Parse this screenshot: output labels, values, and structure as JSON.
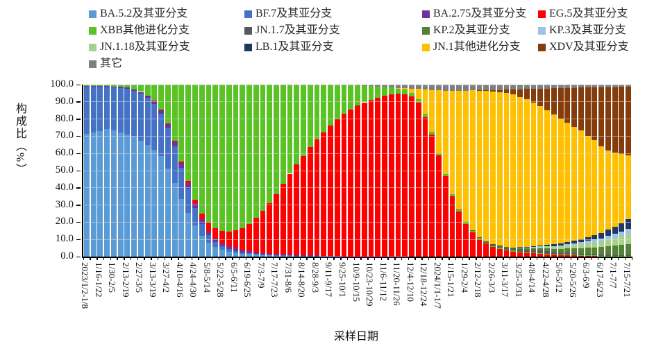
{
  "accent_colors": {
    "axis": "#000000",
    "gridline": "#D9D9D9",
    "background": "#FFFFFF"
  },
  "legend": {
    "items": [
      {
        "label": "BA.5.2及其亚分支",
        "color": "#5B9BD5"
      },
      {
        "label": "BF.7及其亚分支",
        "color": "#4472C4"
      },
      {
        "label": "BA.2.75及其亚分支",
        "color": "#7030A0"
      },
      {
        "label": "EG.5及其亚分支",
        "color": "#FF0000"
      },
      {
        "label": "XBB其他进化分支",
        "color": "#58C322"
      },
      {
        "label": "JN.1.7及其亚分支",
        "color": "#595959"
      },
      {
        "label": "KP.2及其亚分支",
        "color": "#538135"
      },
      {
        "label": "KP.3及其亚分支",
        "color": "#9DC3E6"
      },
      {
        "label": "JN.1.18及其亚分支",
        "color": "#A9D18E"
      },
      {
        "label": "LB.1及其亚分支",
        "color": "#1F3864"
      },
      {
        "label": "JN.1其他进化分支",
        "color": "#FFC000"
      },
      {
        "label": "XDV及其亚分支",
        "color": "#843C0C"
      },
      {
        "label": "其它",
        "color": "#7F7F7F"
      }
    ]
  },
  "chart_data": {
    "type": "bar",
    "stacked": true,
    "normalized_percent": true,
    "bar_count": 81,
    "bars_per_label": 2,
    "title": "",
    "xlabel": "采样日期",
    "ylabel": "构成比（%）",
    "ylim": [
      0,
      100
    ],
    "y_tick_labels": [
      "100.0",
      "90.0",
      "80.0",
      "70.0",
      "60.0",
      "50.0",
      "40.0",
      "30.0",
      "20.0",
      "10.0",
      "0.0"
    ],
    "x_labels": [
      "2023/1/2-1/8",
      "1/16-1/22",
      "1/30-2/5",
      "2/13-2/19",
      "2/27-3/5",
      "3/13-3/19",
      "3/27-4/2",
      "4/10-4/16",
      "4/24-4/30",
      "5/8-5/14",
      "5/22-5/28",
      "6/5-6/11",
      "6/19-6/25",
      "7/3-7/9",
      "7/17-7/23",
      "7/31-8/6",
      "8/14-8/20",
      "8/28-9/3",
      "9/11-9/17",
      "9/25-10/1",
      "10/9-10/15",
      "10/23-10/29",
      "11/6-11/12",
      "11/20-11/26",
      "12/4-12/10",
      "12/18-12/24",
      "2024/1/1-1/7",
      "1/15-1/21",
      "1/29-2/4",
      "2/12-2/18",
      "2/26-3/3",
      "3/11-3/17",
      "3/25-3/31",
      "4/8-4/14",
      "4/22-4/28",
      "5/6-5/12",
      "5/20-5/26",
      "6/3-6/9",
      "6/17-6/23",
      "7/1-7/7",
      "7/15-7/21"
    ],
    "series": [
      {
        "name": "BA.5.2及其亚分支",
        "color": "#5B9BD5",
        "values": [
          71,
          72,
          73,
          74,
          73,
          72,
          71,
          70,
          67,
          64,
          61,
          57,
          50,
          42,
          33,
          25,
          18,
          12,
          8,
          5.5,
          4,
          3,
          2.2,
          1.8,
          1.5,
          1.2,
          1,
          0.8,
          0.7,
          0.6,
          0.5,
          0.4,
          0.4,
          0.3,
          0.3,
          0.2,
          0.2,
          0.2,
          0.1,
          0.1,
          0.1,
          0.1,
          0.1,
          0.1,
          0.1,
          0.1,
          0.1,
          0.1,
          0,
          0,
          0,
          0,
          0,
          0,
          0,
          0,
          0,
          0,
          0,
          0,
          0,
          0,
          0,
          0,
          0,
          0,
          0,
          0,
          0,
          0,
          0,
          0,
          0,
          0,
          0,
          0,
          0,
          0,
          0,
          0,
          0
        ]
      },
      {
        "name": "BF.7及其亚分支",
        "color": "#4472C4",
        "values": [
          27.5,
          26.5,
          25.5,
          24.5,
          25,
          26,
          26.5,
          26,
          27,
          27,
          26,
          24,
          23,
          21,
          18,
          14,
          10,
          7,
          4.5,
          3,
          2,
          1.5,
          1.1,
          0.8,
          0.6,
          0.5,
          0.4,
          0.3,
          0.25,
          0.2,
          0.15,
          0.1,
          0.1,
          0.1,
          0.1,
          0.1,
          0.05,
          0.05,
          0,
          0,
          0,
          0,
          0,
          0,
          0,
          0,
          0,
          0,
          0,
          0,
          0,
          0,
          0,
          0,
          0,
          0,
          0,
          0,
          0,
          0,
          0,
          0,
          0,
          0,
          0,
          0,
          0,
          0,
          0,
          0,
          0,
          0,
          0,
          0,
          0,
          0,
          0,
          0,
          0,
          0,
          0
        ]
      },
      {
        "name": "BA.2.75及其亚分支",
        "color": "#7030A0",
        "values": [
          0.6,
          0.6,
          0.6,
          0.6,
          0.7,
          0.8,
          0.9,
          1,
          1.2,
          1.5,
          1.8,
          2.2,
          2.5,
          2.8,
          3,
          3,
          2.8,
          2.5,
          2.2,
          2,
          1.8,
          1.6,
          1.4,
          1.2,
          1,
          0.9,
          0.8,
          0.7,
          0.6,
          0.5,
          0.45,
          0.4,
          0.35,
          0.3,
          0.25,
          0.2,
          0.2,
          0.15,
          0.1,
          0.1,
          0.1,
          0.1,
          0.05,
          0.05,
          0.05,
          0,
          0,
          0,
          0,
          0,
          0,
          0,
          0,
          0,
          0,
          0,
          0,
          0,
          0,
          0,
          0,
          0,
          0,
          0,
          0,
          0,
          0,
          0,
          0,
          0,
          0,
          0,
          0,
          0,
          0,
          0,
          0,
          0,
          0,
          0,
          0
        ]
      },
      {
        "name": "EG.5及其亚分支",
        "color": "#FF0000",
        "values": [
          0,
          0,
          0,
          0,
          0,
          0,
          0,
          0,
          0,
          0,
          0.1,
          0.2,
          0.3,
          0.5,
          0.8,
          1.2,
          2,
          3.5,
          5,
          6,
          7,
          8.5,
          10.5,
          13,
          16,
          20,
          24.5,
          29.5,
          35,
          41,
          47,
          52.5,
          57.5,
          62,
          66.5,
          70.5,
          74.5,
          78,
          81,
          83.5,
          86,
          88,
          89.5,
          91,
          92.5,
          93.5,
          94.5,
          94.5,
          93,
          88,
          80,
          70,
          58,
          46,
          35,
          26,
          19,
          14,
          10,
          7.5,
          5.5,
          4.5,
          3.5,
          3,
          2.5,
          2.2,
          2,
          1.8,
          1.5,
          1.2,
          1,
          0.9,
          0.8,
          0.7,
          0.6,
          0.5,
          0.45,
          0.4,
          0.35,
          0.3,
          0.25
        ]
      },
      {
        "name": "XBB其他进化分支",
        "color": "#58C322",
        "values": [
          0.3,
          0.4,
          0.5,
          0.6,
          0.8,
          1,
          1.5,
          2.5,
          4,
          6,
          9,
          14,
          22,
          32,
          44,
          55,
          66,
          74,
          80,
          83,
          85,
          85.5,
          85,
          84,
          81.5,
          77.5,
          73.5,
          69,
          63.5,
          57.5,
          51.5,
          46,
          41,
          35.5,
          31,
          27,
          23,
          19.5,
          16.5,
          14,
          11.5,
          9.5,
          8,
          6.5,
          5,
          4,
          3,
          2.5,
          2.2,
          2,
          1.8,
          1.6,
          1.4,
          1.2,
          1.1,
          1,
          0.9,
          0.8,
          0.7,
          0.65,
          0.6,
          0.55,
          0.5,
          0.5,
          0.45,
          0.4,
          0.4,
          0.35,
          0.3,
          0.3,
          0.3,
          0.25,
          0.25,
          0.2,
          0.2,
          0.2,
          0.15,
          0.15,
          0.1,
          0.1,
          0.1
        ]
      },
      {
        "name": "JN.1.7及其亚分支",
        "color": "#595959",
        "values": [
          0,
          0,
          0,
          0,
          0,
          0,
          0,
          0,
          0,
          0,
          0,
          0,
          0,
          0,
          0,
          0,
          0,
          0,
          0,
          0,
          0,
          0,
          0,
          0,
          0,
          0,
          0,
          0,
          0,
          0,
          0,
          0,
          0,
          0,
          0,
          0,
          0,
          0,
          0,
          0,
          0,
          0,
          0,
          0,
          0,
          0,
          0,
          0,
          0,
          0,
          0,
          0,
          0,
          0,
          0,
          0.2,
          0.3,
          0.4,
          0.6,
          0.8,
          1,
          1.2,
          1.4,
          1.5,
          1.6,
          1.6,
          1.5,
          1.5,
          1.4,
          1.3,
          1.2,
          1.1,
          1,
          0.9,
          0.8,
          0.7,
          0.6,
          0.5,
          0.45,
          0.4,
          0.35
        ]
      },
      {
        "name": "KP.2及其亚分支",
        "color": "#538135",
        "values": [
          0,
          0,
          0,
          0,
          0,
          0,
          0,
          0,
          0,
          0,
          0,
          0,
          0,
          0,
          0,
          0,
          0,
          0,
          0,
          0,
          0,
          0,
          0,
          0,
          0,
          0,
          0,
          0,
          0,
          0,
          0,
          0,
          0,
          0,
          0,
          0,
          0,
          0,
          0,
          0,
          0,
          0,
          0,
          0,
          0,
          0,
          0,
          0,
          0,
          0,
          0,
          0,
          0,
          0,
          0,
          0,
          0,
          0,
          0,
          0,
          0,
          0,
          0.2,
          0.3,
          0.5,
          0.7,
          0.9,
          1.1,
          1.4,
          1.7,
          2,
          2.4,
          2.8,
          3.1,
          3.4,
          3.8,
          4.2,
          4.7,
          5.2,
          5.8,
          6.5
        ]
      },
      {
        "name": "JN.1.18及其亚分支",
        "color": "#A9D18E",
        "values": [
          0,
          0,
          0,
          0,
          0,
          0,
          0,
          0,
          0,
          0,
          0,
          0,
          0,
          0,
          0,
          0,
          0,
          0,
          0,
          0,
          0,
          0,
          0,
          0,
          0,
          0,
          0,
          0,
          0,
          0,
          0,
          0,
          0,
          0,
          0,
          0,
          0,
          0,
          0,
          0,
          0,
          0,
          0,
          0,
          0,
          0,
          0,
          0,
          0,
          0,
          0,
          0,
          0,
          0,
          0,
          0,
          0,
          0,
          0,
          0,
          0,
          0,
          0,
          0,
          0.3,
          0.4,
          0.6,
          0.8,
          1,
          1.2,
          1.5,
          1.8,
          2.1,
          2.4,
          2.7,
          3.1,
          3.5,
          4,
          4.5,
          5.2,
          6
        ]
      },
      {
        "name": "KP.3及其亚分支",
        "color": "#9DC3E6",
        "values": [
          0,
          0,
          0,
          0,
          0,
          0,
          0,
          0,
          0,
          0,
          0,
          0,
          0,
          0,
          0,
          0,
          0,
          0,
          0,
          0,
          0,
          0,
          0,
          0,
          0,
          0,
          0,
          0,
          0,
          0,
          0,
          0,
          0,
          0,
          0,
          0,
          0,
          0,
          0,
          0,
          0,
          0,
          0,
          0,
          0,
          0,
          0,
          0,
          0,
          0,
          0,
          0,
          0,
          0,
          0,
          0,
          0,
          0,
          0,
          0,
          0,
          0,
          0,
          0,
          0,
          0,
          0.2,
          0.3,
          0.4,
          0.5,
          0.6,
          0.7,
          0.9,
          1,
          1.2,
          1.4,
          1.6,
          1.9,
          2.2,
          2.6,
          3
        ]
      },
      {
        "name": "LB.1及其亚分支",
        "color": "#1F3864",
        "values": [
          0,
          0,
          0,
          0,
          0,
          0,
          0,
          0,
          0,
          0,
          0,
          0,
          0,
          0,
          0,
          0,
          0,
          0,
          0,
          0,
          0,
          0,
          0,
          0,
          0,
          0,
          0,
          0,
          0,
          0,
          0,
          0,
          0,
          0,
          0,
          0,
          0,
          0,
          0,
          0,
          0,
          0,
          0,
          0,
          0,
          0,
          0,
          0,
          0,
          0,
          0,
          0,
          0,
          0,
          0,
          0,
          0,
          0,
          0,
          0,
          0,
          0,
          0,
          0,
          0.2,
          0.3,
          0.4,
          0.5,
          0.7,
          0.9,
          1.1,
          1.3,
          1.6,
          1.9,
          2.2,
          2.6,
          3,
          3.5,
          4,
          4.8,
          5.8
        ]
      },
      {
        "name": "JN.1其他进化分支",
        "color": "#FFC000",
        "values": [
          0,
          0,
          0,
          0,
          0,
          0,
          0,
          0,
          0,
          0,
          0,
          0,
          0,
          0,
          0,
          0,
          0,
          0,
          0,
          0,
          0,
          0,
          0,
          0,
          0,
          0,
          0,
          0,
          0,
          0,
          0,
          0,
          0,
          0,
          0,
          0,
          0,
          0,
          0,
          0,
          0,
          0,
          0,
          0,
          0,
          0,
          0.3,
          0.8,
          2.5,
          6,
          14,
          24,
          36,
          48,
          60,
          69,
          76,
          81,
          84.5,
          86.5,
          88,
          88,
          88,
          88.5,
          87,
          86,
          83.5,
          81,
          77.5,
          75.5,
          72.5,
          69.5,
          66,
          63,
          57,
          54,
          50,
          44,
          42,
          39.5,
          37
        ]
      },
      {
        "name": "XDV及其亚分支",
        "color": "#843C0C",
        "values": [
          0,
          0,
          0,
          0,
          0,
          0,
          0,
          0,
          0,
          0,
          0,
          0,
          0,
          0,
          0,
          0,
          0,
          0,
          0,
          0,
          0,
          0,
          0,
          0,
          0,
          0,
          0,
          0,
          0,
          0,
          0,
          0,
          0,
          0,
          0,
          0,
          0,
          0,
          0,
          0,
          0,
          0,
          0,
          0,
          0,
          0,
          0,
          0,
          0,
          0,
          0,
          0,
          0,
          0,
          0,
          0,
          0,
          0,
          0.3,
          0.5,
          0.8,
          1.2,
          2,
          3,
          4.5,
          6,
          8,
          10,
          12.5,
          15,
          17.5,
          20,
          22.5,
          25,
          27.5,
          30,
          34,
          35.5,
          37,
          38.5,
          40
        ]
      },
      {
        "name": "其它",
        "color": "#7F7F7F",
        "values": [
          0.2,
          0.2,
          0.2,
          0.2,
          0.2,
          0.2,
          0.2,
          0.2,
          0.2,
          0.2,
          0.2,
          0.2,
          0.2,
          0.2,
          0.2,
          0.2,
          0.2,
          0.2,
          0.2,
          0.2,
          0.2,
          0.2,
          0.2,
          0.2,
          0.2,
          0.2,
          0.2,
          0.2,
          0.2,
          0.2,
          0.2,
          0.2,
          0.2,
          0.2,
          0.2,
          0.2,
          0.2,
          0.2,
          0.2,
          0.2,
          0.5,
          0.6,
          0.8,
          1,
          1.2,
          1.5,
          2,
          2.2,
          2.3,
          2.5,
          2.7,
          3,
          3.2,
          3.4,
          3.5,
          3.5,
          3.5,
          3.4,
          3.3,
          3.2,
          3.1,
          3,
          2.9,
          2.8,
          2.7,
          2.6,
          2.5,
          2.4,
          2.3,
          2.2,
          2.1,
          2,
          1.9,
          1.8,
          1.7,
          1.6,
          1.5,
          1.45,
          1.4,
          1.35,
          1.3
        ]
      }
    ]
  }
}
